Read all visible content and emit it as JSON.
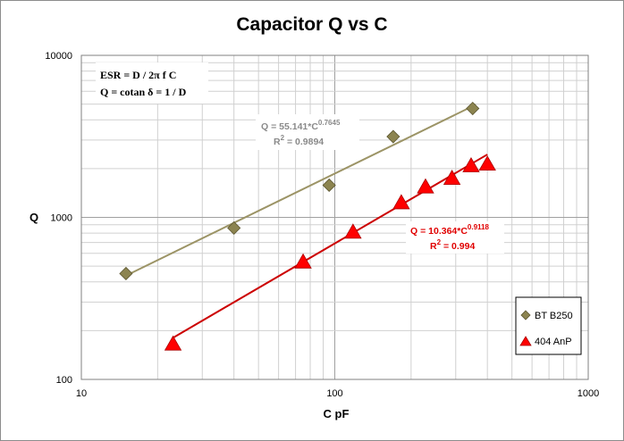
{
  "chart_data": {
    "type": "scatter",
    "title": "Capacitor Q vs C",
    "xlabel": "C pF",
    "ylabel": "Q",
    "xscale": "log",
    "yscale": "log",
    "xlim": [
      10,
      1000
    ],
    "ylim": [
      100,
      10000
    ],
    "x_ticks": [
      "10",
      "100",
      "1000"
    ],
    "y_ticks": [
      "100",
      "1000",
      "10000"
    ],
    "grid": true,
    "legend_position": "bottom-right",
    "annotations": {
      "formula_line1": "ESR = D / 2π f C",
      "formula_line2": "Q = cotan δ = 1 / D"
    },
    "series": [
      {
        "name": "BT B250",
        "marker": "diamond",
        "color": "#8c8450",
        "x": [
          15,
          40,
          95,
          170,
          350
        ],
        "y": [
          450,
          860,
          1580,
          3150,
          4700
        ],
        "trendline": {
          "type": "power",
          "a": 55.141,
          "b": 0.7645,
          "x_range": [
            15,
            360
          ],
          "color": "#9c9466",
          "equation_text": "Q = 55.141*C",
          "exponent_text": "0.7645",
          "r2_text": "R",
          "r2_value": " = 0.9894"
        }
      },
      {
        "name": "404 AnP",
        "marker": "triangle",
        "color": "#ff0000",
        "x": [
          23,
          75,
          118,
          183,
          228,
          290,
          345,
          400
        ],
        "y": [
          165,
          530,
          810,
          1230,
          1540,
          1740,
          2080,
          2130
        ],
        "trendline": {
          "type": "power",
          "a": 10.364,
          "b": 0.9118,
          "x_range": [
            23,
            400
          ],
          "color": "#cc0000",
          "equation_text": "Q = 10.364*C",
          "exponent_text": "0.9118",
          "r2_text": "R",
          "r2_value": " = 0.994"
        }
      }
    ]
  },
  "colors": {
    "grid": "#d0d0d0",
    "plot_border": "#808080",
    "olive": "#8c8450",
    "red": "#ff0000"
  }
}
